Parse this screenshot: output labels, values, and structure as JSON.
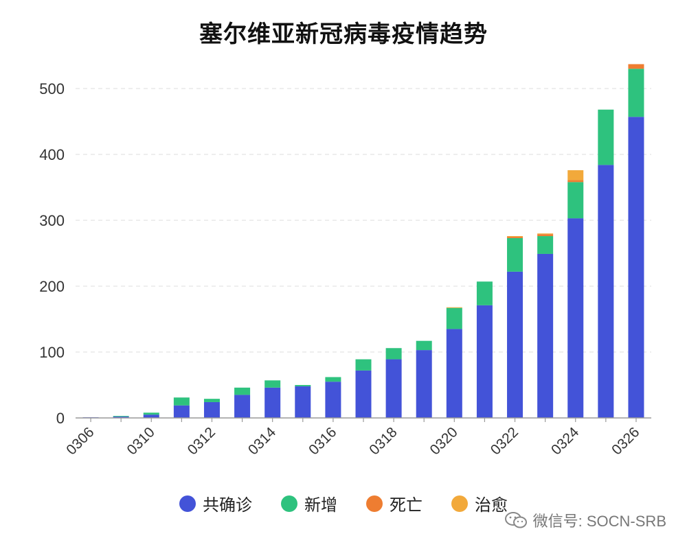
{
  "colors": {
    "confirmed": "#4353d8",
    "new": "#2ec27e",
    "deaths": "#ee7d31",
    "recovered": "#f2a93b"
  },
  "watermark": {
    "text": "微信号: SOCN-SRB"
  },
  "chart_data": {
    "type": "bar",
    "stacked": true,
    "title": "塞尔维亚新冠病毒疫情趋势",
    "xlabel": "",
    "ylabel": "",
    "ylim": [
      0,
      550
    ],
    "yticks": [
      0,
      100,
      200,
      300,
      400,
      500
    ],
    "grid": true,
    "legend_position": "bottom",
    "categories": [
      "0306",
      "0307",
      "0310",
      "0311",
      "0312",
      "0313",
      "0314",
      "0315",
      "0316",
      "0317",
      "0318",
      "0319",
      "0320",
      "0321",
      "0322",
      "0323",
      "0324",
      "0325",
      "0326"
    ],
    "xtick_labels": [
      "0306",
      "0310",
      "0312",
      "0314",
      "0316",
      "0318",
      "0320",
      "0322",
      "0324",
      "0326"
    ],
    "series": [
      {
        "name": "共确诊",
        "values": [
          1,
          2,
          5,
          19,
          24,
          35,
          46,
          48,
          55,
          72,
          89,
          103,
          135,
          171,
          222,
          249,
          303,
          384,
          457
        ]
      },
      {
        "name": "新增",
        "values": [
          0,
          1,
          3,
          12,
          5,
          11,
          11,
          2,
          7,
          17,
          17,
          14,
          32,
          36,
          51,
          27,
          55,
          84,
          73
        ]
      },
      {
        "name": "死亡",
        "values": [
          0,
          0,
          0,
          0,
          0,
          0,
          0,
          0,
          0,
          0,
          0,
          0,
          0,
          0,
          2,
          3,
          3,
          0,
          7
        ]
      },
      {
        "name": "治愈",
        "values": [
          0,
          0,
          0,
          0,
          0,
          0,
          0,
          0,
          0,
          0,
          0,
          0,
          1,
          0,
          1,
          1,
          15,
          0,
          0
        ]
      }
    ]
  }
}
